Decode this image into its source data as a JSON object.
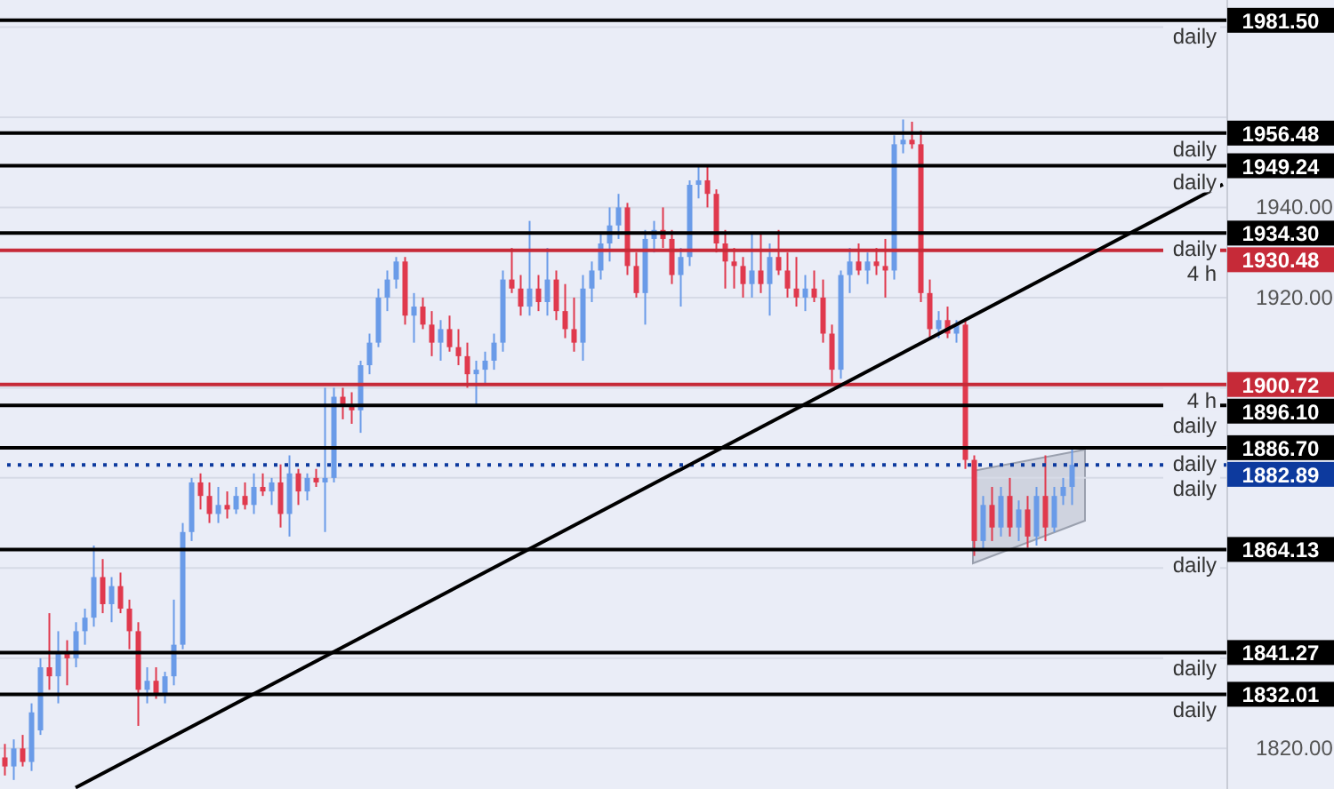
{
  "chart_data": {
    "type": "candlestick",
    "categories": [
      null,
      null,
      null,
      null,
      null,
      null,
      null,
      null,
      null,
      null,
      null,
      null,
      null,
      null,
      null,
      null,
      null,
      null,
      null,
      null,
      null,
      null,
      null,
      null,
      null,
      null,
      null,
      null,
      null,
      null,
      null,
      null,
      null,
      null,
      null,
      null,
      null,
      null,
      null,
      null,
      null,
      null,
      null,
      null,
      null,
      null,
      null,
      null,
      null,
      null,
      null,
      null,
      null,
      null,
      null,
      null,
      null,
      null,
      null,
      null,
      null,
      null,
      null,
      null,
      null,
      null,
      null,
      null,
      null,
      null,
      null,
      null,
      null,
      null,
      null,
      null,
      null,
      null,
      null,
      null,
      null,
      null,
      null,
      null,
      null,
      null,
      null,
      null,
      null,
      null,
      null,
      null,
      null,
      null,
      null,
      null,
      null,
      null,
      null,
      null,
      null,
      null,
      null,
      null,
      null,
      null,
      null,
      null,
      null,
      null,
      null,
      null,
      null,
      null,
      null,
      null,
      null,
      null,
      null,
      null,
      null,
      null,
      null,
      null,
      null,
      null,
      null,
      null,
      null,
      null,
      null,
      null,
      null,
      null,
      null,
      null,
      null,
      null
    ],
    "ohlc": [
      [
        1818,
        1821,
        1814,
        1816
      ],
      [
        1816,
        1822,
        1813,
        1820
      ],
      [
        1820,
        1823,
        1816,
        1817
      ],
      [
        1817,
        1830,
        1815,
        1828
      ],
      [
        1824,
        1840,
        1823,
        1838
      ],
      [
        1838,
        1850,
        1833,
        1836
      ],
      [
        1836,
        1846,
        1830,
        1841
      ],
      [
        1841,
        1844,
        1834,
        1840
      ],
      [
        1840,
        1848,
        1838,
        1846
      ],
      [
        1846,
        1851,
        1843,
        1849
      ],
      [
        1849,
        1865,
        1847,
        1858
      ],
      [
        1858,
        1862,
        1850,
        1852
      ],
      [
        1852,
        1858,
        1848,
        1856
      ],
      [
        1856,
        1859,
        1850,
        1851
      ],
      [
        1851,
        1853,
        1842,
        1846
      ],
      [
        1846,
        1848,
        1825,
        1833
      ],
      [
        1833,
        1838,
        1830,
        1835
      ],
      [
        1835,
        1838,
        1831,
        1832
      ],
      [
        1832,
        1837,
        1830,
        1836
      ],
      [
        1836,
        1853,
        1834,
        1843
      ],
      [
        1843,
        1870,
        1842,
        1868
      ],
      [
        1868,
        1880,
        1866,
        1879
      ],
      [
        1879,
        1881,
        1873,
        1876
      ],
      [
        1876,
        1879,
        1870,
        1872
      ],
      [
        1872,
        1878,
        1870,
        1874
      ],
      [
        1874,
        1877,
        1871,
        1873
      ],
      [
        1873,
        1878,
        1872,
        1876
      ],
      [
        1876,
        1879,
        1873,
        1874
      ],
      [
        1874,
        1881,
        1872,
        1878
      ],
      [
        1878,
        1881,
        1876,
        1877
      ],
      [
        1877,
        1880,
        1874,
        1879
      ],
      [
        1879,
        1883,
        1869,
        1872
      ],
      [
        1872,
        1885,
        1867,
        1881
      ],
      [
        1881,
        1882,
        1874,
        1877
      ],
      [
        1877,
        1881,
        1875,
        1880
      ],
      [
        1880,
        1882,
        1878,
        1879
      ],
      [
        1879,
        1900,
        1868,
        1880
      ],
      [
        1880,
        1900,
        1879,
        1898
      ],
      [
        1898,
        1900,
        1893,
        1896
      ],
      [
        1896,
        1899,
        1892,
        1895
      ],
      [
        1895,
        1906,
        1890,
        1905
      ],
      [
        1905,
        1912,
        1903,
        1910
      ],
      [
        1910,
        1922,
        1909,
        1920
      ],
      [
        1920,
        1926,
        1917,
        1924
      ],
      [
        1924,
        1929,
        1922,
        1928
      ],
      [
        1928,
        1929,
        1914,
        1916
      ],
      [
        1916,
        1921,
        1910,
        1918
      ],
      [
        1918,
        1920,
        1913,
        1914
      ],
      [
        1914,
        1917,
        1907,
        1910
      ],
      [
        1910,
        1915,
        1906,
        1913
      ],
      [
        1913,
        1916,
        1908,
        1909
      ],
      [
        1909,
        1913,
        1905,
        1907
      ],
      [
        1907,
        1910,
        1900,
        1903
      ],
      [
        1903,
        1906,
        1896.1,
        1904
      ],
      [
        1904,
        1908,
        1901,
        1906
      ],
      [
        1906,
        1912,
        1904,
        1910
      ],
      [
        1910,
        1926,
        1908,
        1924
      ],
      [
        1924,
        1931,
        1921,
        1922
      ],
      [
        1922,
        1925,
        1916,
        1918
      ],
      [
        1918,
        1937,
        1916,
        1922
      ],
      [
        1922,
        1925,
        1917,
        1919
      ],
      [
        1919,
        1931,
        1916,
        1924
      ],
      [
        1924,
        1926,
        1915,
        1917
      ],
      [
        1917,
        1923,
        1911,
        1913
      ],
      [
        1913,
        1920,
        1908,
        1910
      ],
      [
        1910,
        1925,
        1906,
        1922
      ],
      [
        1922,
        1928,
        1919,
        1926
      ],
      [
        1926,
        1934,
        1924,
        1932
      ],
      [
        1932,
        1940,
        1928,
        1936
      ],
      [
        1936,
        1943,
        1933,
        1940
      ],
      [
        1940,
        1941,
        1925,
        1927
      ],
      [
        1927,
        1930,
        1920,
        1921
      ],
      [
        1921,
        1935,
        1914,
        1933
      ],
      [
        1933,
        1937,
        1930,
        1935
      ],
      [
        1935,
        1940,
        1931,
        1933
      ],
      [
        1933,
        1935,
        1923,
        1925
      ],
      [
        1925,
        1931,
        1918,
        1929
      ],
      [
        1929,
        1946,
        1927,
        1945
      ],
      [
        1945,
        1949.2,
        1942,
        1946
      ],
      [
        1946,
        1949,
        1940,
        1943
      ],
      [
        1943,
        1944,
        1930,
        1932
      ],
      [
        1932,
        1935,
        1922,
        1928
      ],
      [
        1928,
        1931,
        1922,
        1927
      ],
      [
        1927,
        1929,
        1920,
        1923
      ],
      [
        1923,
        1934,
        1920,
        1926
      ],
      [
        1926,
        1934,
        1921,
        1923
      ],
      [
        1923,
        1932,
        1916,
        1929
      ],
      [
        1929,
        1935,
        1925,
        1926
      ],
      [
        1926,
        1930,
        1920,
        1922
      ],
      [
        1922,
        1929,
        1918,
        1920
      ],
      [
        1920,
        1925,
        1917,
        1922
      ],
      [
        1922,
        1926,
        1919,
        1920
      ],
      [
        1920,
        1924,
        1910,
        1912
      ],
      [
        1912,
        1914,
        1900.7,
        1904
      ],
      [
        1904,
        1926,
        1902,
        1925
      ],
      [
        1925,
        1931,
        1921,
        1928
      ],
      [
        1928,
        1932,
        1925,
        1926
      ],
      [
        1926,
        1930,
        1923,
        1928
      ],
      [
        1928,
        1931,
        1925,
        1927
      ],
      [
        1927,
        1933,
        1920,
        1926
      ],
      [
        1926,
        1956,
        1924,
        1954
      ],
      [
        1954,
        1959.5,
        1952,
        1955
      ],
      [
        1955,
        1959,
        1953,
        1954
      ],
      [
        1954,
        1957,
        1919,
        1921
      ],
      [
        1921,
        1924,
        1911,
        1913
      ],
      [
        1913,
        1917,
        1911,
        1915
      ],
      [
        1915,
        1918,
        1911,
        1912
      ],
      [
        1912,
        1915,
        1910,
        1914
      ],
      [
        1914,
        1915,
        1882,
        1884
      ],
      [
        1884,
        1885,
        1862.7,
        1866
      ],
      [
        1866,
        1876,
        1864,
        1874
      ],
      [
        1874,
        1878,
        1866,
        1869
      ],
      [
        1869,
        1878,
        1867,
        1876
      ],
      [
        1876,
        1880,
        1867,
        1869
      ],
      [
        1869,
        1875,
        1866,
        1873
      ],
      [
        1873,
        1876,
        1864.5,
        1867
      ],
      [
        1867,
        1878,
        1865,
        1876
      ],
      [
        1876,
        1885,
        1866,
        1869
      ],
      [
        1869,
        1878,
        1868,
        1876
      ],
      [
        1876,
        1880,
        1874,
        1878
      ],
      [
        1878,
        1886.7,
        1874,
        1882.89
      ],
      null,
      null,
      null,
      null,
      null,
      null,
      null,
      null,
      null,
      null,
      null,
      null,
      null,
      null,
      null,
      null,
      null
    ],
    "colors": [
      "#e0394d",
      "#6a9be8",
      "#e0394d",
      "#6a9be8",
      "#6a9be8",
      "#e0394d",
      "#6a9be8",
      "#e0394d",
      "#6a9be8",
      "#6a9be8",
      "#6a9be8",
      "#e0394d",
      "#6a9be8",
      "#e0394d",
      "#e0394d",
      "#e0394d",
      "#6a9be8",
      "#e0394d",
      "#6a9be8",
      "#6a9be8",
      "#6a9be8",
      "#6a9be8",
      "#e0394d",
      "#e0394d",
      "#6a9be8",
      "#e0394d",
      "#6a9be8",
      "#e0394d",
      "#6a9be8",
      "#e0394d",
      "#6a9be8",
      "#e0394d",
      "#6a9be8",
      "#e0394d",
      "#6a9be8",
      "#e0394d",
      "#6a9be8",
      "#6a9be8",
      "#e0394d",
      "#e0394d",
      "#6a9be8",
      "#6a9be8",
      "#6a9be8",
      "#6a9be8",
      "#6a9be8",
      "#e0394d",
      "#6a9be8",
      "#e0394d",
      "#e0394d",
      "#6a9be8",
      "#e0394d",
      "#e0394d",
      "#e0394d",
      "#6a9be8",
      "#6a9be8",
      "#6a9be8",
      "#6a9be8",
      "#e0394d",
      "#e0394d",
      "#6a9be8",
      "#e0394d",
      "#6a9be8",
      "#e0394d",
      "#e0394d",
      "#e0394d",
      "#6a9be8",
      "#6a9be8",
      "#6a9be8",
      "#6a9be8",
      "#6a9be8",
      "#e0394d",
      "#e0394d",
      "#6a9be8",
      "#6a9be8",
      "#e0394d",
      "#e0394d",
      "#6a9be8",
      "#6a9be8",
      "#6a9be8",
      "#e0394d",
      "#e0394d",
      "#e0394d",
      "#e0394d",
      "#e0394d",
      "#6a9be8",
      "#e0394d",
      "#6a9be8",
      "#e0394d",
      "#e0394d",
      "#e0394d",
      "#6a9be8",
      "#e0394d",
      "#e0394d",
      "#e0394d",
      "#6a9be8",
      "#6a9be8",
      "#e0394d",
      "#6a9be8",
      "#e0394d",
      "#e0394d",
      "#6a9be8",
      "#6a9be8",
      "#e0394d",
      "#e0394d",
      "#e0394d",
      "#6a9be8",
      "#e0394d",
      "#6a9be8",
      "#e0394d",
      "#e0394d",
      "#6a9be8",
      "#e0394d",
      "#6a9be8",
      "#e0394d",
      "#6a9be8",
      "#e0394d",
      "#6a9be8",
      "#e0394d",
      "#6a9be8",
      "#6a9be8",
      "#6a9be8",
      null,
      null,
      null,
      null,
      null,
      null,
      null,
      null,
      null,
      null,
      null,
      null,
      null,
      null,
      null,
      null,
      null
    ],
    "series": [
      {
        "type": "line",
        "color": "#000000",
        "values": [
          null,
          null,
          null,
          null,
          null,
          null,
          null,
          null,
          1811.3,
          null,
          null,
          null,
          null,
          null,
          null,
          null,
          null,
          null,
          null,
          null,
          null,
          null,
          null,
          null,
          null,
          null,
          null,
          null,
          null,
          null,
          null,
          null,
          null,
          null,
          null,
          null,
          null,
          null,
          null,
          null,
          null,
          null,
          null,
          null,
          null,
          null,
          null,
          null,
          null,
          null,
          null,
          null,
          null,
          null,
          null,
          null,
          null,
          null,
          null,
          null,
          null,
          null,
          null,
          null,
          null,
          null,
          null,
          null,
          null,
          null,
          null,
          null,
          null,
          null,
          null,
          null,
          null,
          null,
          null,
          null,
          null,
          null,
          null,
          null,
          null,
          null,
          null,
          null,
          null,
          null,
          null,
          null,
          null,
          null,
          null,
          null,
          null,
          null,
          null,
          null,
          null,
          null,
          null,
          null,
          null,
          null,
          null,
          null,
          null,
          null,
          null,
          null,
          null,
          null,
          null,
          null,
          null,
          null,
          null,
          null,
          null,
          null,
          null,
          null,
          null,
          null,
          null,
          null,
          null,
          null,
          null,
          null,
          null,
          null,
          null,
          null,
          null,
          1945.1
        ]
      }
    ],
    "ylim": [
      1811,
      1986
    ],
    "yticks": [
      {
        "value": 1820,
        "label": "1820.00"
      },
      {
        "value": 1840,
        "label": null
      },
      {
        "value": 1860,
        "label": null
      },
      {
        "value": 1880,
        "label": null
      },
      {
        "value": 1900,
        "label": null
      },
      {
        "value": 1920,
        "label": "1920.00"
      },
      {
        "value": 1940,
        "label": "1940.00"
      },
      {
        "value": 1960,
        "label": null
      },
      {
        "value": 1980,
        "label": null
      }
    ],
    "tick_labels": "y",
    "grid": "y",
    "ref_lines": [
      {
        "axis": "y",
        "value": 1981.5,
        "label": "1981.50",
        "color": "#000000",
        "line_style": "solid"
      },
      {
        "axis": "y",
        "value": 1956.48,
        "label": "1956.48",
        "color": "#000000",
        "line_style": "solid"
      },
      {
        "axis": "y",
        "value": 1949.24,
        "label": "1949.24",
        "color": "#000000",
        "line_style": "solid"
      },
      {
        "axis": "y",
        "value": 1934.3,
        "label": "1934.30",
        "color": "#000000",
        "line_style": "solid"
      },
      {
        "axis": "y",
        "value": 1930.48,
        "label": "1930.48",
        "color": "#c62a38",
        "line_style": "solid"
      },
      {
        "axis": "y",
        "value": 1900.72,
        "label": "1900.72",
        "color": "#c62a38",
        "line_style": "solid"
      },
      {
        "axis": "y",
        "value": 1896.1,
        "label": "1896.10",
        "color": "#000000",
        "line_style": "solid"
      },
      {
        "axis": "y",
        "value": 1886.7,
        "label": "1886.70",
        "color": "#000000",
        "line_style": "solid"
      },
      {
        "axis": "y",
        "value": 1882.89,
        "label": "1882.89",
        "color": "#0d3a9e",
        "line_style": "dotted"
      },
      {
        "axis": "y",
        "value": 1864.13,
        "label": "1864.13",
        "color": "#000000",
        "line_style": "solid"
      },
      {
        "axis": "y",
        "value": 1841.27,
        "label": "1841.27",
        "color": "#000000",
        "line_style": "solid"
      },
      {
        "axis": "y",
        "value": 1832.01,
        "label": "1832.01",
        "color": "#000000",
        "line_style": "solid"
      }
    ],
    "annotations": [
      {
        "text": "daily",
        "y": 1981.5
      },
      {
        "text": "daily",
        "y": 1956.48
      },
      {
        "text": "daily",
        "y": 1949.24
      },
      {
        "text": "daily",
        "y": 1934.3
      },
      {
        "text": "4 h",
        "y": 1930.48
      },
      {
        "text": "4 h",
        "y": 1900.72
      },
      {
        "text": "daily",
        "y": 1896.1
      },
      {
        "text": "daily",
        "y": 1886.7
      },
      {
        "text": "daily",
        "y": 1882.89
      },
      {
        "text": "daily",
        "y": 1864.13
      },
      {
        "text": "daily",
        "y": 1841.27
      },
      {
        "text": "daily",
        "y": 1832.01
      }
    ]
  }
}
